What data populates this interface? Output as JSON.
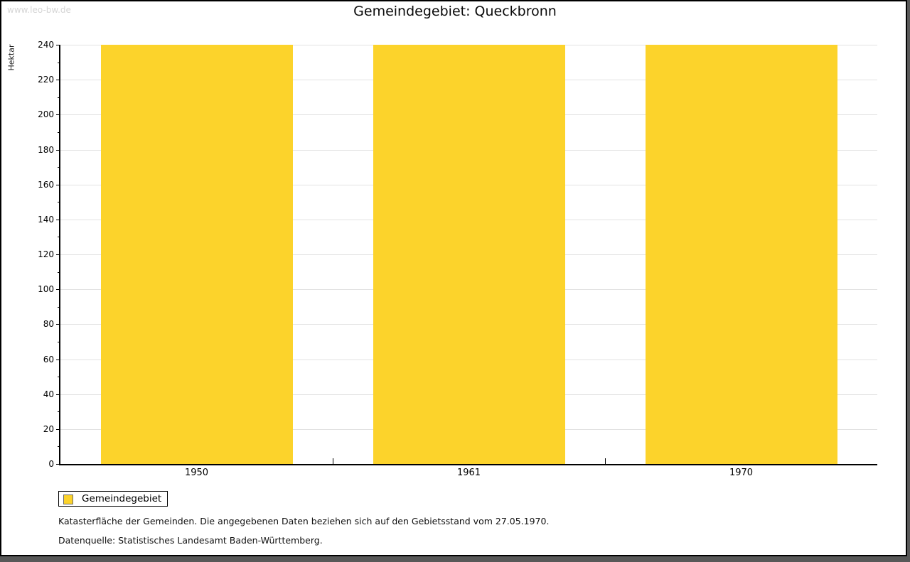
{
  "watermark": "www.leo-bw.de",
  "title": "Gemeindegebiet: Queckbronn",
  "chart_data": {
    "type": "bar",
    "categories": [
      "1950",
      "1961",
      "1970"
    ],
    "series": [
      {
        "name": "Gemeindegebiet",
        "values": [
          240,
          240,
          240
        ],
        "color": "#fcd32b"
      }
    ],
    "title": "Gemeindegebiet: Queckbronn",
    "xlabel": "",
    "ylabel": "Hektar",
    "ylim": [
      0,
      240
    ],
    "ytick_major_step": 20,
    "ytick_minor_step": 10,
    "grid": true,
    "gridline_color": "#e2e2e2",
    "legend_position": "bottom-left"
  },
  "legend": {
    "items": [
      {
        "label": "Gemeindegebiet",
        "color": "#fcd32b"
      }
    ]
  },
  "footer": {
    "line1": "Katasterfläche der Gemeinden. Die angegebenen Daten beziehen sich auf den Gebietsstand vom 27.05.1970.",
    "line2": "Datenquelle: Statistisches Landesamt Baden-Württemberg."
  }
}
